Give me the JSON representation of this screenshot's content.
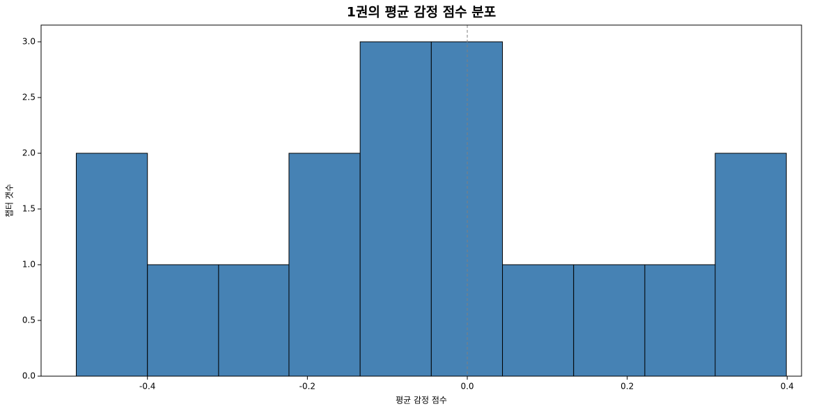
{
  "chart_data": {
    "type": "histogram",
    "title": "1권의 평균 감정 점수 분포",
    "xlabel": "평균 감정 점수",
    "ylabel": "챕터 갯수",
    "bins": [
      -0.489,
      -0.4,
      -0.311,
      -0.223,
      -0.134,
      -0.045,
      0.044,
      0.133,
      0.222,
      0.31,
      0.399
    ],
    "values": [
      2,
      1,
      1,
      2,
      3,
      3,
      1,
      1,
      1,
      2
    ],
    "color": "#4682b4",
    "edgecolor": "#000000",
    "xlim": [
      -0.533,
      0.418
    ],
    "ylim": [
      0,
      3.15
    ],
    "xticks": [
      -0.4,
      -0.2,
      {
        "value": 0,
        "label": "0.0"
      },
      0.2,
      0.4
    ],
    "yticks": [
      {
        "value": 0,
        "label": "0.0"
      },
      0.5,
      {
        "value": 1,
        "label": "1.0"
      },
      1.5,
      {
        "value": 2,
        "label": "2.0"
      },
      2.5,
      {
        "value": 3,
        "label": "3.0"
      }
    ],
    "vline": {
      "x": 0,
      "color": "#808080",
      "style": "dashed"
    },
    "grid": false
  }
}
